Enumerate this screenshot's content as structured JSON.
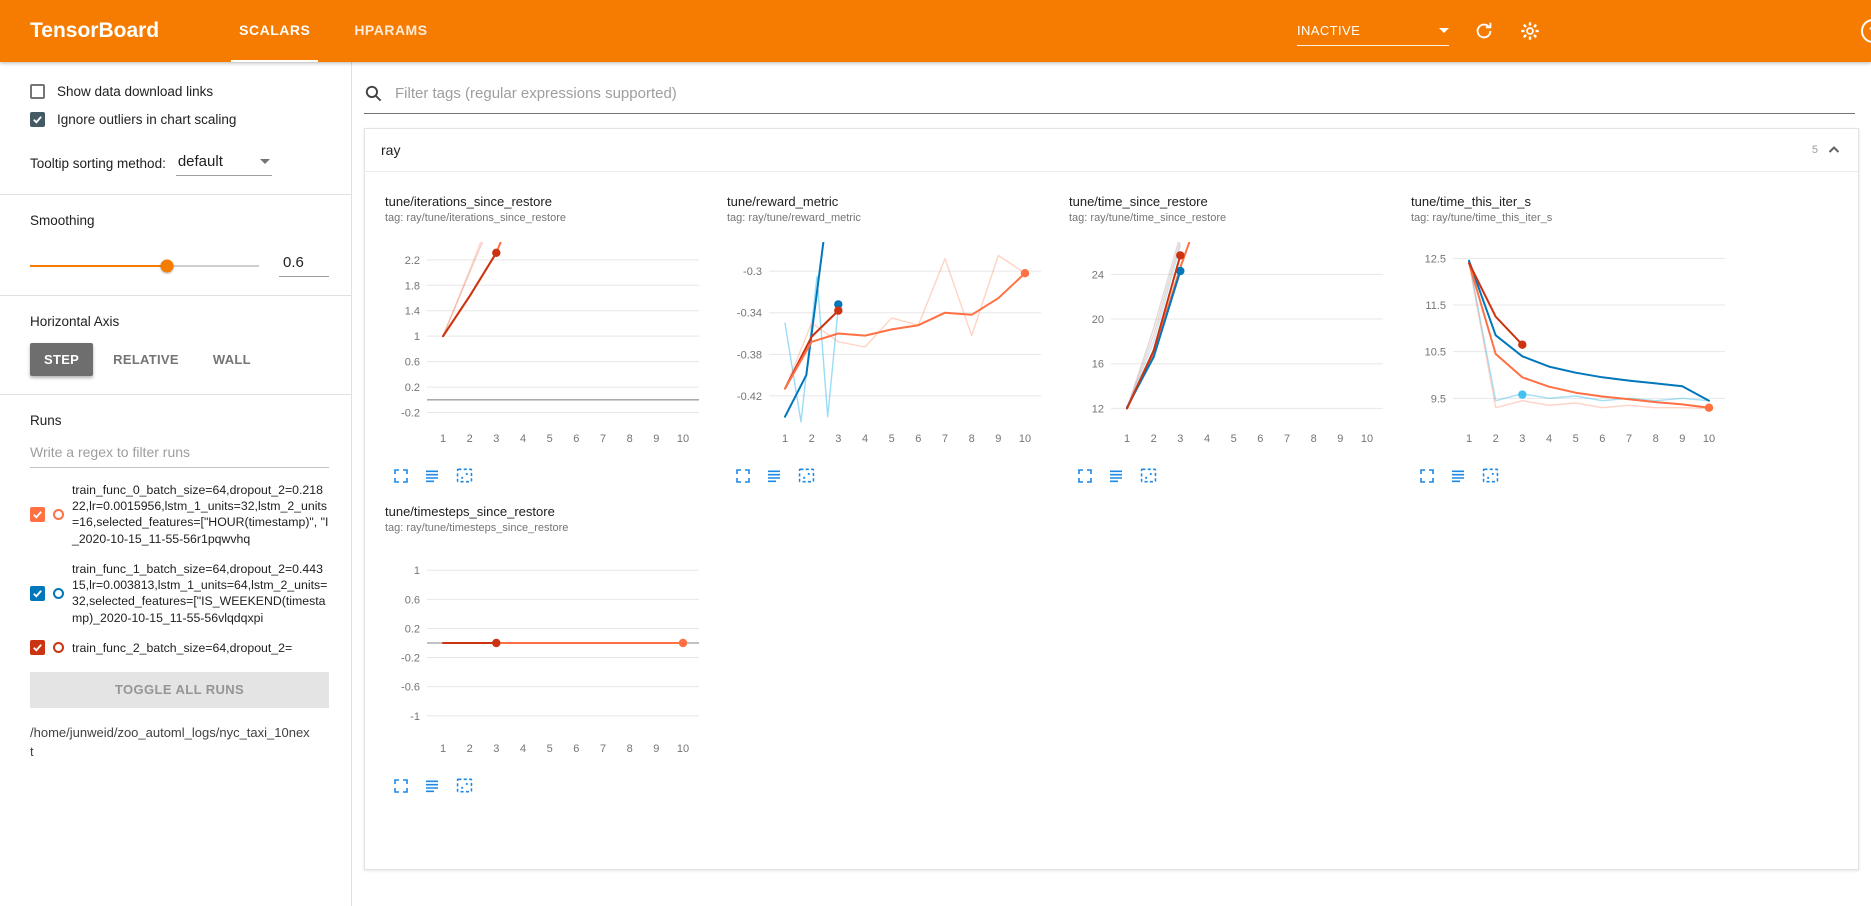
{
  "header": {
    "title": "TensorBoard",
    "tabs": [
      {
        "label": "SCALARS",
        "active": true
      },
      {
        "label": "HPARAMS",
        "active": false
      }
    ],
    "status_dropdown": "INACTIVE",
    "colors": {
      "header_bg": "#f57c00",
      "accent": "#f57c00",
      "action_icon_blue": "#1e88e5"
    }
  },
  "icons": {
    "header": [
      "chevron-down-icon",
      "refresh-icon",
      "settings-gear-icon",
      "help-icon"
    ],
    "chart_actions": [
      "expand-chart-icon",
      "runs-selector-icon",
      "fit-domain-icon"
    ],
    "other": [
      "search-icon",
      "chevron-up-icon",
      "checkbox-icon"
    ]
  },
  "sidebar": {
    "checkboxes": [
      {
        "label": "Show data download links",
        "checked": false
      },
      {
        "label": "Ignore outliers in chart scaling",
        "checked": true
      }
    ],
    "tooltip_sorting": {
      "label": "Tooltip sorting method:",
      "value": "default"
    },
    "smoothing": {
      "label": "Smoothing",
      "value": "0.6",
      "percent": 60
    },
    "horizontal_axis": {
      "label": "Horizontal Axis",
      "options": [
        "STEP",
        "RELATIVE",
        "WALL"
      ],
      "selected": "STEP"
    },
    "runs": {
      "label": "Runs",
      "filter_placeholder": "Write a regex to filter runs",
      "items": [
        {
          "name": "train_func_0_batch_size=64,dropout_2=0.21822,lr=0.0015956,lstm_1_units=32,lstm_2_units=16,selected_features=[\"HOUR(timestamp)\", \"I_2020-10-15_11-55-56r1pqwvhq",
          "checked": true,
          "color": "#ff7043"
        },
        {
          "name": "train_func_1_batch_size=64,dropout_2=0.44315,lr=0.003813,lstm_1_units=64,lstm_2_units=32,selected_features=[\"IS_WEEKEND(timestamp)_2020-10-15_11-55-56vlqdqxpi",
          "checked": true,
          "color": "#0077bb"
        },
        {
          "name": "train_func_2_batch_size=64,dropout_2=",
          "checked": true,
          "color": "#cc3311"
        }
      ],
      "toggle_all_label": "TOGGLE ALL RUNS",
      "path": "/home/junweid/zoo_automl_logs/nyc_taxi_10next"
    }
  },
  "main": {
    "filter_placeholder": "Filter tags (regular expressions supported)",
    "section": {
      "name": "ray",
      "count": "5"
    }
  },
  "chart_data": [
    {
      "type": "line",
      "title": "tune/iterations_since_restore",
      "tag": "tag: ray/tune/iterations_since_restore",
      "xlim": [
        0.4,
        10.6
      ],
      "ylim": [
        -0.38,
        2.48
      ],
      "xticks": [
        1,
        2,
        3,
        4,
        5,
        6,
        7,
        8,
        9,
        10
      ],
      "yticks": [
        -0.2,
        0.2,
        0.6,
        1,
        1.4,
        1.8,
        2.2
      ],
      "zero_line": true,
      "series": [
        {
          "name": "run-2-raw",
          "color": "#cc3311",
          "opacity": 0.22,
          "width": 1.4,
          "points": [
            [
              1,
              1
            ],
            [
              2,
              2
            ],
            [
              3,
              3
            ]
          ]
        },
        {
          "name": "run-0-raw",
          "color": "#ff7043",
          "opacity": 0.28,
          "width": 1.4,
          "points": [
            [
              1,
              1
            ],
            [
              2,
              2.04
            ],
            [
              3,
              3.1
            ]
          ]
        },
        {
          "name": "run-0-smoothed",
          "color": "#ff7043",
          "opacity": 1,
          "width": 2,
          "points": [
            [
              1,
              1
            ],
            [
              2,
              1.63
            ],
            [
              3,
              2.31
            ],
            [
              3.6,
              2.92
            ]
          ]
        },
        {
          "name": "run-2-smoothed",
          "color": "#cc3311",
          "opacity": 1,
          "width": 2,
          "points": [
            [
              1,
              1
            ],
            [
              2,
              1.63
            ],
            [
              3,
              2.31
            ]
          ],
          "end_dot": true
        }
      ]
    },
    {
      "type": "line",
      "title": "tune/reward_metric",
      "tag": "tag: ray/tune/reward_metric",
      "xlim": [
        0.4,
        10.6
      ],
      "ylim": [
        -0.447,
        -0.272
      ],
      "xticks": [
        1,
        2,
        3,
        4,
        5,
        6,
        7,
        8,
        9,
        10
      ],
      "yticks": [
        -0.42,
        -0.38,
        -0.34,
        -0.3
      ],
      "zero_line": false,
      "series": [
        {
          "name": "run-1-raw",
          "color": "#33bbee",
          "opacity": 0.5,
          "width": 1.4,
          "points": [
            [
              1,
              -0.35
            ],
            [
              1.6,
              -0.445
            ],
            [
              2.2,
              -0.305
            ],
            [
              2.6,
              -0.44
            ],
            [
              3,
              -0.335
            ]
          ]
        },
        {
          "name": "run-1-smoothed",
          "color": "#0077bb",
          "opacity": 1,
          "width": 2,
          "points": [
            [
              1,
              -0.44
            ],
            [
              1.8,
              -0.4
            ],
            [
              2.5,
              -0.26
            ]
          ]
        },
        {
          "name": "run-1-last",
          "color": "#0077bb",
          "opacity": 1,
          "width": 2,
          "points": [
            [
              3,
              -0.332
            ]
          ],
          "end_dot": true
        },
        {
          "name": "run-0-raw",
          "color": "#ff7043",
          "opacity": 0.3,
          "width": 1.4,
          "points": [
            [
              1,
              -0.413
            ],
            [
              2,
              -0.35
            ],
            [
              3,
              -0.368
            ],
            [
              4,
              -0.373
            ],
            [
              5,
              -0.345
            ],
            [
              6,
              -0.352
            ],
            [
              7,
              -0.288
            ],
            [
              8,
              -0.362
            ],
            [
              9,
              -0.285
            ],
            [
              10,
              -0.302
            ]
          ]
        },
        {
          "name": "run-2-smoothed",
          "color": "#cc3311",
          "opacity": 1,
          "width": 2,
          "points": [
            [
              1,
              -0.413
            ],
            [
              2,
              -0.363
            ],
            [
              3,
              -0.338
            ]
          ],
          "end_dot": true
        },
        {
          "name": "run-0-smoothed",
          "color": "#ff7043",
          "opacity": 1,
          "width": 2,
          "points": [
            [
              1,
              -0.413
            ],
            [
              2,
              -0.368
            ],
            [
              3,
              -0.36
            ],
            [
              4,
              -0.362
            ],
            [
              5,
              -0.356
            ],
            [
              6,
              -0.352
            ],
            [
              7,
              -0.34
            ],
            [
              8,
              -0.342
            ],
            [
              9,
              -0.326
            ],
            [
              10,
              -0.302
            ]
          ],
          "end_dot": true
        }
      ]
    },
    {
      "type": "line",
      "title": "tune/time_since_restore",
      "tag": "tag: ray/tune/time_since_restore",
      "xlim": [
        0.4,
        10.6
      ],
      "ylim": [
        10.6,
        26.9
      ],
      "xticks": [
        1,
        2,
        3,
        4,
        5,
        6,
        7,
        8,
        9,
        10
      ],
      "yticks": [
        12,
        16,
        20,
        24
      ],
      "zero_line": false,
      "series": [
        {
          "name": "raw-gray",
          "color": "#bbbbbb",
          "opacity": 0.5,
          "width": 1.4,
          "points": [
            [
              1,
              12
            ],
            [
              2,
              19.2
            ],
            [
              3,
              27.5
            ]
          ]
        },
        {
          "name": "run-2-raw",
          "color": "#cc3311",
          "opacity": 0.2,
          "width": 1.4,
          "points": [
            [
              1,
              12
            ],
            [
              2,
              18.6
            ],
            [
              3,
              27
            ]
          ]
        },
        {
          "name": "run-1-raw",
          "color": "#33bbee",
          "opacity": 0.3,
          "width": 1.4,
          "points": [
            [
              1,
              12
            ],
            [
              2,
              18
            ],
            [
              3,
              26.6
            ]
          ]
        },
        {
          "name": "run-0-smoothed",
          "color": "#ff7043",
          "opacity": 1,
          "width": 2,
          "points": [
            [
              1,
              12
            ],
            [
              2,
              16.9
            ],
            [
              3,
              24.6
            ],
            [
              3.5,
              28
            ]
          ]
        },
        {
          "name": "run-1-smoothed",
          "color": "#0077bb",
          "opacity": 1,
          "width": 2,
          "points": [
            [
              1,
              12.1
            ],
            [
              2,
              16.6
            ],
            [
              3,
              24.3
            ]
          ],
          "end_dot": true
        },
        {
          "name": "run-2-smoothed",
          "color": "#cc3311",
          "opacity": 1,
          "width": 2,
          "points": [
            [
              1,
              12
            ],
            [
              2,
              17.2
            ],
            [
              3,
              25.7
            ]
          ],
          "end_dot": true
        }
      ]
    },
    {
      "type": "line",
      "title": "tune/time_this_iter_s",
      "tag": "tag: ray/tune/time_this_iter_s",
      "xlim": [
        0.4,
        10.6
      ],
      "ylim": [
        8.95,
        12.85
      ],
      "xticks": [
        1,
        2,
        3,
        4,
        5,
        6,
        7,
        8,
        9,
        10
      ],
      "yticks": [
        9.5,
        10.5,
        11.5,
        12.5
      ],
      "zero_line": false,
      "series": [
        {
          "name": "run-1-raw",
          "color": "#33bbee",
          "opacity": 0.45,
          "width": 1.4,
          "points": [
            [
              1,
              12.45
            ],
            [
              2,
              9.45
            ],
            [
              3,
              9.6
            ],
            [
              4,
              9.5
            ],
            [
              5,
              9.55
            ],
            [
              6,
              9.45
            ],
            [
              7,
              9.5
            ],
            [
              8,
              9.45
            ],
            [
              9,
              9.5
            ],
            [
              10,
              9.45
            ]
          ]
        },
        {
          "name": "run-0-raw",
          "color": "#ff7043",
          "opacity": 0.3,
          "width": 1.4,
          "points": [
            [
              1,
              12.4
            ],
            [
              2,
              9.3
            ],
            [
              3,
              9.45
            ],
            [
              4,
              9.35
            ],
            [
              5,
              9.4
            ],
            [
              6,
              9.3
            ],
            [
              7,
              9.35
            ],
            [
              8,
              9.3
            ],
            [
              9,
              9.3
            ],
            [
              10,
              9.28
            ]
          ]
        },
        {
          "name": "run-1-smoothed",
          "color": "#0077bb",
          "opacity": 1,
          "width": 2,
          "points": [
            [
              1,
              12.45
            ],
            [
              2,
              10.85
            ],
            [
              3,
              10.4
            ],
            [
              4,
              10.18
            ],
            [
              5,
              10.05
            ],
            [
              6,
              9.95
            ],
            [
              7,
              9.88
            ],
            [
              8,
              9.82
            ],
            [
              9,
              9.76
            ],
            [
              10,
              9.45
            ]
          ]
        },
        {
          "name": "run-0-smoothed",
          "color": "#ff7043",
          "opacity": 1,
          "width": 2,
          "points": [
            [
              1,
              12.4
            ],
            [
              2,
              10.45
            ],
            [
              3,
              9.95
            ],
            [
              4,
              9.75
            ],
            [
              5,
              9.62
            ],
            [
              6,
              9.54
            ],
            [
              7,
              9.48
            ],
            [
              8,
              9.42
            ],
            [
              9,
              9.37
            ],
            [
              10,
              9.3
            ]
          ],
          "end_dot": true
        },
        {
          "name": "run-2-smoothed",
          "color": "#cc3311",
          "opacity": 1,
          "width": 2,
          "points": [
            [
              1,
              12.4
            ],
            [
              2,
              11.25
            ],
            [
              3,
              10.65
            ]
          ],
          "end_dot": true
        },
        {
          "name": "run-1-last",
          "color": "#33bbee",
          "opacity": 0.9,
          "width": 2,
          "points": [
            [
              3,
              9.58
            ]
          ],
          "end_dot": true
        }
      ]
    },
    {
      "type": "line",
      "title": "tune/timesteps_since_restore",
      "tag": "tag: ray/tune/timesteps_since_restore",
      "xlim": [
        0.4,
        10.6
      ],
      "ylim": [
        -1.25,
        1.25
      ],
      "xticks": [
        1,
        2,
        3,
        4,
        5,
        6,
        7,
        8,
        9,
        10
      ],
      "yticks": [
        -1,
        -0.6,
        -0.2,
        0.2,
        0.6,
        1
      ],
      "zero_line": true,
      "series": [
        {
          "name": "run-gray",
          "color": "#bbbbbb",
          "opacity": 0.9,
          "width": 1.4,
          "points": [
            [
              1,
              0
            ],
            [
              10,
              0
            ]
          ]
        },
        {
          "name": "run-0-smoothed",
          "color": "#ff7043",
          "opacity": 1,
          "width": 2,
          "points": [
            [
              1,
              0
            ],
            [
              10,
              0
            ]
          ],
          "end_dot": true
        },
        {
          "name": "run-2-smoothed",
          "color": "#cc3311",
          "opacity": 1,
          "width": 2,
          "points": [
            [
              1,
              0
            ],
            [
              3,
              0
            ]
          ],
          "end_dot": true
        }
      ]
    }
  ]
}
